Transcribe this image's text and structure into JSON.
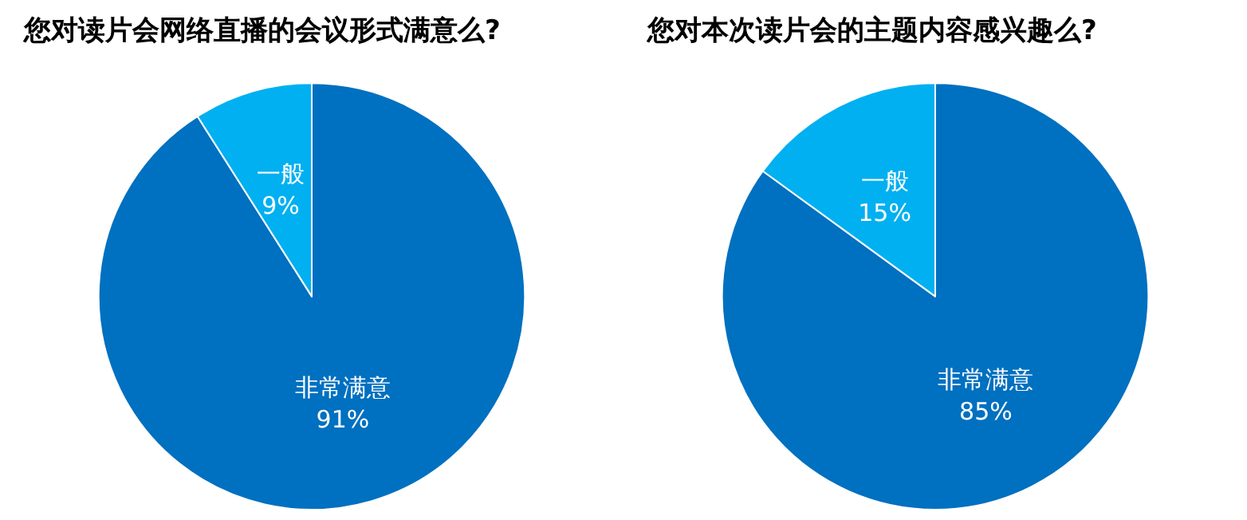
{
  "chart_data": [
    {
      "type": "pie",
      "title": "您对读片会网络直播的会议形式满意么?",
      "categories": [
        "非常满意",
        "一般"
      ],
      "values": [
        91,
        9
      ],
      "colors": [
        "#0070c0",
        "#00b0f0"
      ],
      "value_labels": [
        "91%",
        "9%"
      ]
    },
    {
      "type": "pie",
      "title": "您对本次读片会的主题内容感兴趣么?",
      "categories": [
        "非常满意",
        "一般"
      ],
      "values": [
        85,
        15
      ],
      "colors": [
        "#0070c0",
        "#00b0f0"
      ],
      "value_labels": [
        "85%",
        "15%"
      ]
    }
  ]
}
